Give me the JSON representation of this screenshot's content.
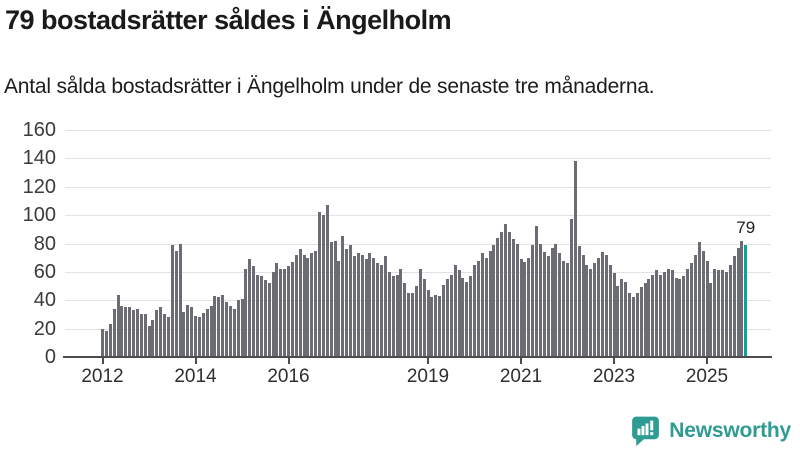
{
  "header": {
    "title": "79 bostadsrätter såldes i Ängelholm",
    "subtitle": "Antal sålda bostadsrätter i Ängelholm under de senaste tre månaderna."
  },
  "footer": {
    "brand": "Newsworthy",
    "brand_color": "#2f9c94",
    "logo_icon": "speech-bubble-with-bar-chart-and-exclamation"
  },
  "chart_data": {
    "type": "bar",
    "title": "79 bostadsrätter såldes i Ängelholm",
    "subtitle": "Antal sålda bostadsrätter i Ängelholm under de senaste tre månaderna.",
    "x_interval": "month",
    "x_start": "2012-01",
    "x_end": "2025-11",
    "values": [
      20,
      18,
      23,
      34,
      44,
      36,
      35,
      35,
      33,
      34,
      30,
      30,
      22,
      26,
      33,
      35,
      30,
      28,
      79,
      75,
      80,
      32,
      37,
      35,
      29,
      28,
      31,
      34,
      36,
      43,
      42,
      44,
      39,
      36,
      34,
      40,
      41,
      62,
      69,
      64,
      58,
      57,
      54,
      52,
      60,
      66,
      62,
      62,
      64,
      67,
      72,
      76,
      72,
      70,
      73,
      75,
      102,
      100,
      107,
      81,
      82,
      68,
      85,
      76,
      79,
      71,
      73,
      72,
      69,
      73,
      70,
      66,
      65,
      71,
      60,
      57,
      58,
      62,
      52,
      45,
      45,
      50,
      62,
      55,
      47,
      42,
      44,
      43,
      51,
      55,
      58,
      65,
      61,
      56,
      53,
      57,
      65,
      68,
      73,
      70,
      75,
      79,
      84,
      88,
      94,
      88,
      83,
      80,
      69,
      67,
      70,
      79,
      92,
      80,
      74,
      71,
      77,
      80,
      73,
      68,
      66,
      97,
      138,
      78,
      72,
      65,
      62,
      66,
      70,
      74,
      72,
      65,
      59,
      50,
      55,
      53,
      45,
      42,
      45,
      49,
      52,
      55,
      58,
      61,
      58,
      60,
      62,
      61,
      56,
      55,
      57,
      62,
      66,
      72,
      81,
      75,
      68,
      52,
      62,
      61,
      61,
      60,
      65,
      71,
      77,
      82,
      79
    ],
    "highlight": {
      "index": 166,
      "value": 79,
      "label": "79",
      "color": "#0aa69e"
    },
    "bar_color": "#6c6c74",
    "grid_color": "#e2e2e2",
    "axis_color": "#4c4c4c",
    "grid": "horizontal",
    "legend": "none",
    "ylim": [
      0,
      160
    ],
    "yticks": [
      0,
      20,
      40,
      60,
      80,
      100,
      120,
      140,
      160
    ],
    "xticks": [
      {
        "label": "2012",
        "month_index": 0
      },
      {
        "label": "2014",
        "month_index": 24
      },
      {
        "label": "2016",
        "month_index": 48
      },
      {
        "label": "2019",
        "month_index": 84
      },
      {
        "label": "2021",
        "month_index": 108
      },
      {
        "label": "2023",
        "month_index": 132
      },
      {
        "label": "2025",
        "month_index": 156
      }
    ]
  }
}
